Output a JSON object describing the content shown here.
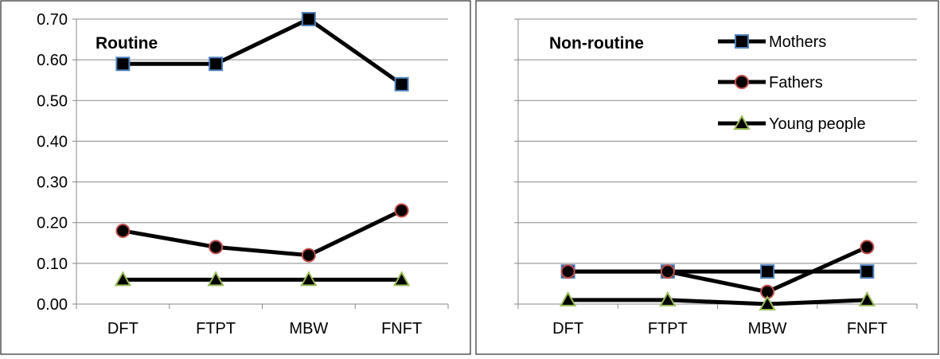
{
  "chart_data": [
    {
      "type": "line",
      "title": "Routine",
      "categories": [
        "DFT",
        "FTPT",
        "MBW",
        "FNFT"
      ],
      "yticks": [
        "0.00",
        "0.10",
        "0.20",
        "0.30",
        "0.40",
        "0.50",
        "0.60",
        "0.70"
      ],
      "ylim": [
        0,
        0.7
      ],
      "grid": true,
      "series": [
        {
          "name": "Mothers",
          "values": [
            0.59,
            0.59,
            0.7,
            0.54
          ],
          "marker": "square",
          "marker_color": "#000000",
          "marker_edge": "#4f81bd"
        },
        {
          "name": "Fathers",
          "values": [
            0.18,
            0.14,
            0.12,
            0.23
          ],
          "marker": "circle",
          "marker_color": "#000000",
          "marker_edge": "#c0504d"
        },
        {
          "name": "Young people",
          "values": [
            0.06,
            0.06,
            0.06,
            0.06
          ],
          "marker": "triangle",
          "marker_color": "#000000",
          "marker_edge": "#9bbb59"
        }
      ]
    },
    {
      "type": "line",
      "title": "Non-routine",
      "categories": [
        "DFT",
        "FTPT",
        "MBW",
        "FNFT"
      ],
      "ylim": [
        0,
        0.7
      ],
      "grid": true,
      "legend": "top-right",
      "series": [
        {
          "name": "Mothers",
          "values": [
            0.08,
            0.08,
            0.08,
            0.08
          ],
          "marker": "square",
          "marker_color": "#000000",
          "marker_edge": "#4f81bd"
        },
        {
          "name": "Fathers",
          "values": [
            0.08,
            0.08,
            0.03,
            0.14
          ],
          "marker": "circle",
          "marker_color": "#000000",
          "marker_edge": "#c0504d"
        },
        {
          "name": "Young people",
          "values": [
            0.01,
            0.01,
            0.0,
            0.01
          ],
          "marker": "triangle",
          "marker_color": "#000000",
          "marker_edge": "#9bbb59"
        }
      ]
    }
  ]
}
